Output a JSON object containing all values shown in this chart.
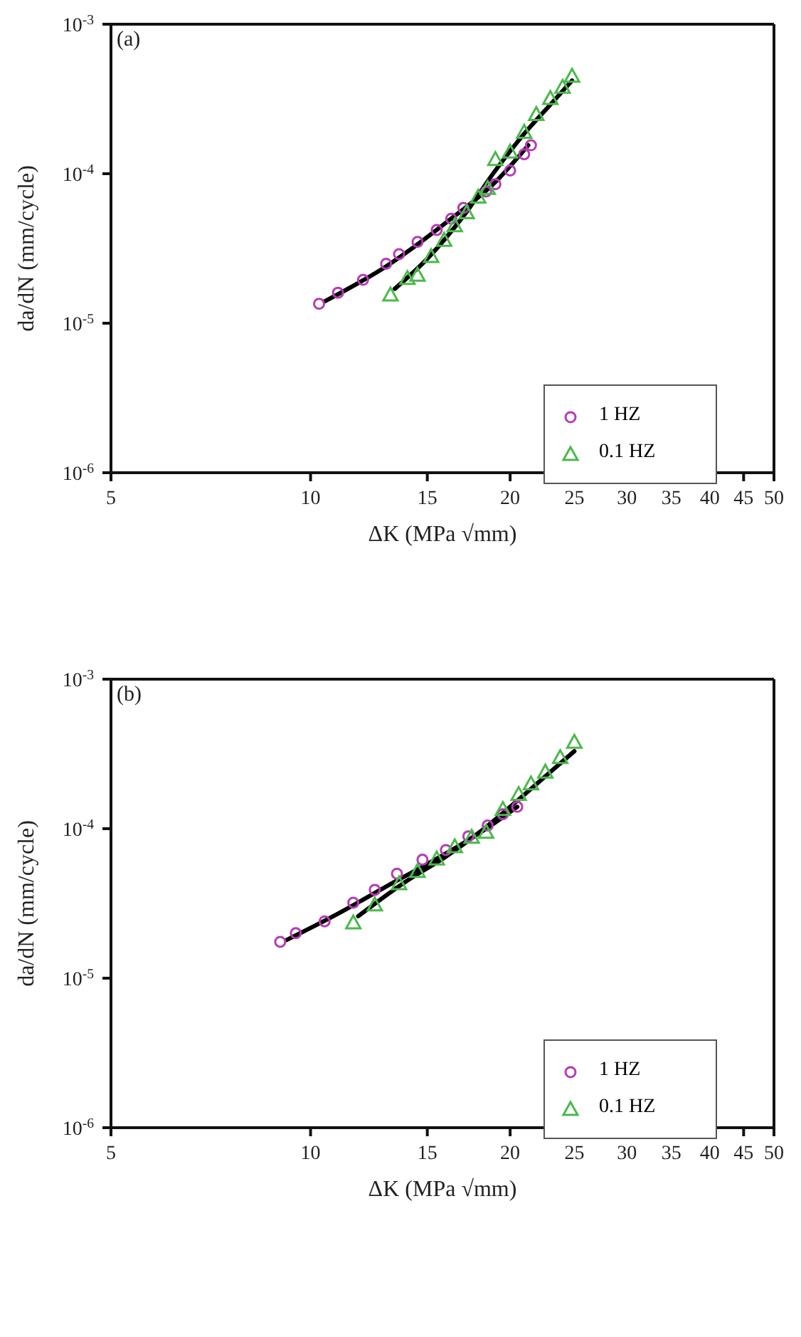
{
  "chart_data": [
    {
      "type": "scatter",
      "title": "(a)",
      "xlabel": "ΔK (MPa √mm)",
      "ylabel": "da/dN (mm/cycle)",
      "log": "xy",
      "legend": "bottom right",
      "xlim": [
        5,
        50
      ],
      "xticks": [
        5,
        10,
        15,
        20,
        25,
        30,
        35,
        40,
        45,
        50
      ],
      "ylim": [
        1e-06,
        0.001
      ],
      "yticks": [
        {
          "value": 1e-06,
          "label": "10$^{-6}$"
        },
        {
          "value": 1e-05,
          "label": "10$^{-5}$"
        },
        {
          "value": 0.0001,
          "label": "10$^{-4}$"
        },
        {
          "value": 0.001,
          "label": "10$^{-3}$"
        }
      ],
      "series": [
        {
          "name": "1 HZ",
          "color": "#b43cb4",
          "marker": "circle",
          "x": [
            10.3,
            11,
            12,
            13,
            13.6,
            14.5,
            15.5,
            16.3,
            17,
            18.4,
            19,
            20,
            21,
            21.5
          ],
          "values": [
            1.35e-05,
            1.6e-05,
            1.95e-05,
            2.5e-05,
            2.9e-05,
            3.5e-05,
            4.2e-05,
            5e-05,
            5.9e-05,
            7.6e-05,
            8.5e-05,
            0.000105,
            0.000135,
            0.000155
          ]
        },
        {
          "name": "0.1 HZ",
          "color": "#4cb84c",
          "marker": "triangle",
          "x": [
            13.2,
            14,
            14.5,
            15.2,
            15.9,
            16.5,
            17.2,
            17.9,
            18.5,
            19,
            20,
            21,
            21.9,
            23,
            24,
            24.8
          ],
          "values": [
            1.55e-05,
            2e-05,
            2.1e-05,
            2.8e-05,
            3.6e-05,
            4.5e-05,
            5.5e-05,
            7e-05,
            8e-05,
            0.000125,
            0.00014,
            0.00019,
            0.00025,
            0.00032,
            0.00038,
            0.00045
          ]
        },
        {
          "type": "line",
          "color": "#000000",
          "x": [
            10.5,
            13,
            16,
            19,
            21.3
          ],
          "values": [
            1.4e-05,
            2.4e-05,
            4.7e-05,
            8.8e-05,
            0.000155
          ]
        },
        {
          "type": "line",
          "color": "#000000",
          "x": [
            13.4,
            15,
            17,
            19,
            21,
            23,
            24.8
          ],
          "values": [
            1.7e-05,
            2.7e-05,
            5.2e-05,
            0.000105,
            0.000185,
            0.00029,
            0.00042
          ]
        }
      ]
    },
    {
      "type": "scatter",
      "title": "(b)",
      "xlabel": "ΔK (MPa √mm)",
      "ylabel": "da/dN (mm/cycle)",
      "log": "xy",
      "legend": "bottom right",
      "xlim": [
        5,
        50
      ],
      "xticks": [
        5,
        10,
        15,
        20,
        25,
        30,
        35,
        40,
        45,
        50
      ],
      "ylim": [
        1e-06,
        0.001
      ],
      "yticks": [
        {
          "value": 1e-06,
          "label": "10$^{-6}$"
        },
        {
          "value": 1e-05,
          "label": "10$^{-5}$"
        },
        {
          "value": 0.0001,
          "label": "10$^{-4}$"
        },
        {
          "value": 0.001,
          "label": "10$^{-3}$"
        }
      ],
      "series": [
        {
          "name": "1 HZ",
          "color": "#b43cb4",
          "marker": "circle",
          "x": [
            9.0,
            9.5,
            10.5,
            11.6,
            12.5,
            13.5,
            14.75,
            16,
            17.3,
            18.5,
            19.5,
            20.5
          ],
          "values": [
            1.75e-05,
            2e-05,
            2.4e-05,
            3.2e-05,
            3.9e-05,
            5e-05,
            6.2e-05,
            7.2e-05,
            8.9e-05,
            0.000105,
            0.000125,
            0.00014
          ]
        },
        {
          "name": "0.1 HZ",
          "color": "#4cb84c",
          "marker": "triangle",
          "x": [
            11.6,
            12.5,
            13.6,
            14.5,
            15.5,
            16.5,
            17.5,
            18.4,
            19.5,
            20.6,
            21.5,
            22.6,
            23.8,
            25
          ],
          "values": [
            2.35e-05,
            3.1e-05,
            4.3e-05,
            5.2e-05,
            6.3e-05,
            7.6e-05,
            8.8e-05,
            9.5e-05,
            0.000135,
            0.00017,
            0.0002,
            0.00024,
            0.0003,
            0.00038
          ]
        },
        {
          "type": "line",
          "color": "#000000",
          "x": [
            9.2,
            11,
            13,
            15,
            17,
            19,
            20.5
          ],
          "values": [
            1.8e-05,
            2.7e-05,
            4.1e-05,
            5.8e-05,
            8e-05,
            0.00011,
            0.00014
          ]
        },
        {
          "type": "line",
          "color": "#000000",
          "x": [
            11.8,
            14,
            16,
            18,
            20,
            22.5,
            25
          ],
          "values": [
            2.6e-05,
            4.5e-05,
            6.5e-05,
            9.5e-05,
            0.00014,
            0.00022,
            0.00033
          ]
        }
      ]
    }
  ]
}
